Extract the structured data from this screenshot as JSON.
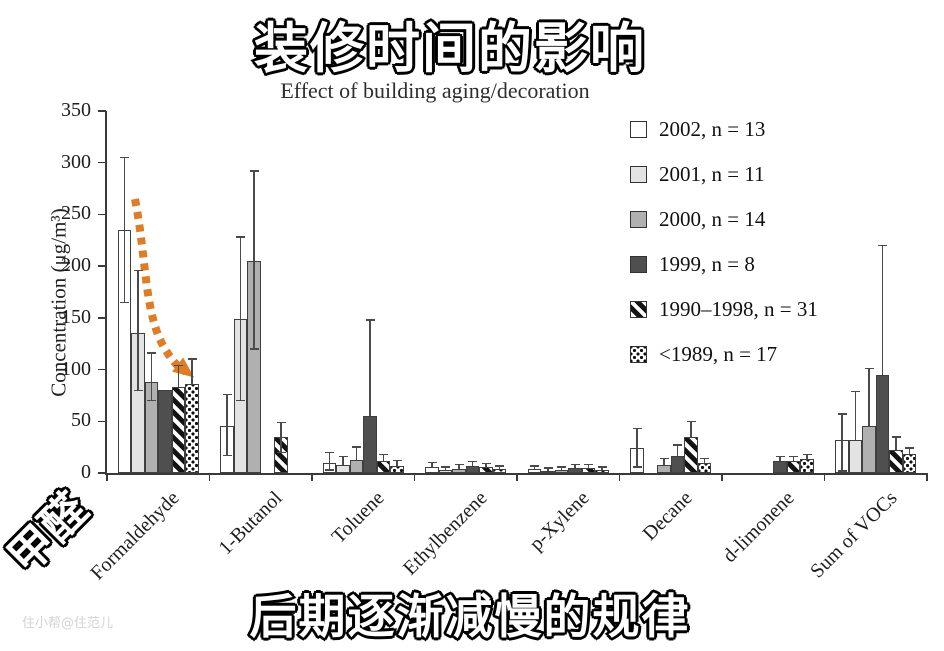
{
  "overlay": {
    "main_title": "装修时间的影响",
    "bottom_caption": "后期逐渐减慢的规律",
    "side_label": "甲醛",
    "watermark": "住小帮@住范儿",
    "arrow_color": "#dd7e26"
  },
  "chart_data": {
    "type": "bar",
    "title": "Effect of building aging/decoration",
    "ylabel": "Concentration (μg/m³)",
    "xlabel": "",
    "ylim": [
      0,
      350
    ],
    "yticks": [
      0,
      50,
      100,
      150,
      200,
      250,
      300,
      350
    ],
    "grid": false,
    "legend_position": "upper right inside plot",
    "error_bars": "whisker caps above (and sometimes below) bars",
    "categories": [
      "Formaldehyde",
      "1-Butanol",
      "Toluene",
      "Ethylbenzene",
      "p-Xylene",
      "Decane",
      "d-limonene",
      "Sum of VOCs"
    ],
    "series": [
      {
        "name": "2002, n = 13",
        "values": [
          235,
          45,
          10,
          6,
          4,
          24,
          0,
          32
        ],
        "err_lo": [
          165,
          17,
          3,
          null,
          null,
          6,
          null,
          2
        ],
        "err_hi": [
          305,
          76,
          20,
          10,
          7,
          43,
          null,
          57
        ]
      },
      {
        "name": "2001, n = 11",
        "values": [
          135,
          149,
          8,
          3,
          2,
          0,
          0,
          32
        ],
        "err_lo": [
          80,
          70,
          null,
          null,
          null,
          null,
          null,
          null
        ],
        "err_hi": [
          196,
          228,
          16,
          6,
          5,
          null,
          null,
          79
        ]
      },
      {
        "name": "2000, n = 14",
        "values": [
          88,
          205,
          13,
          4,
          3,
          8,
          0,
          45
        ],
        "err_lo": [
          70,
          120,
          null,
          null,
          null,
          null,
          null,
          null
        ],
        "err_hi": [
          116,
          292,
          25,
          8,
          6,
          14,
          null,
          101
        ]
      },
      {
        "name": "1999, n = 8",
        "values": [
          80,
          0,
          55,
          7,
          5,
          16,
          12,
          95
        ],
        "err_lo": [
          null,
          null,
          null,
          null,
          null,
          null,
          null,
          null
        ],
        "err_hi": [
          null,
          null,
          148,
          11,
          8,
          27,
          16,
          220
        ]
      },
      {
        "name": "1990–1998, n = 31",
        "values": [
          83,
          35,
          12,
          6,
          5,
          35,
          12,
          22
        ],
        "err_lo": [
          null,
          20,
          null,
          null,
          null,
          null,
          null,
          null
        ],
        "err_hi": [
          104,
          49,
          18,
          9,
          8,
          50,
          16,
          35
        ]
      },
      {
        "name": "<1989, n = 17",
        "values": [
          86,
          0,
          7,
          4,
          3,
          10,
          14,
          18
        ],
        "err_lo": [
          null,
          null,
          null,
          null,
          null,
          null,
          null,
          null
        ],
        "err_hi": [
          110,
          null,
          12,
          7,
          6,
          14,
          18,
          24
        ]
      }
    ]
  }
}
